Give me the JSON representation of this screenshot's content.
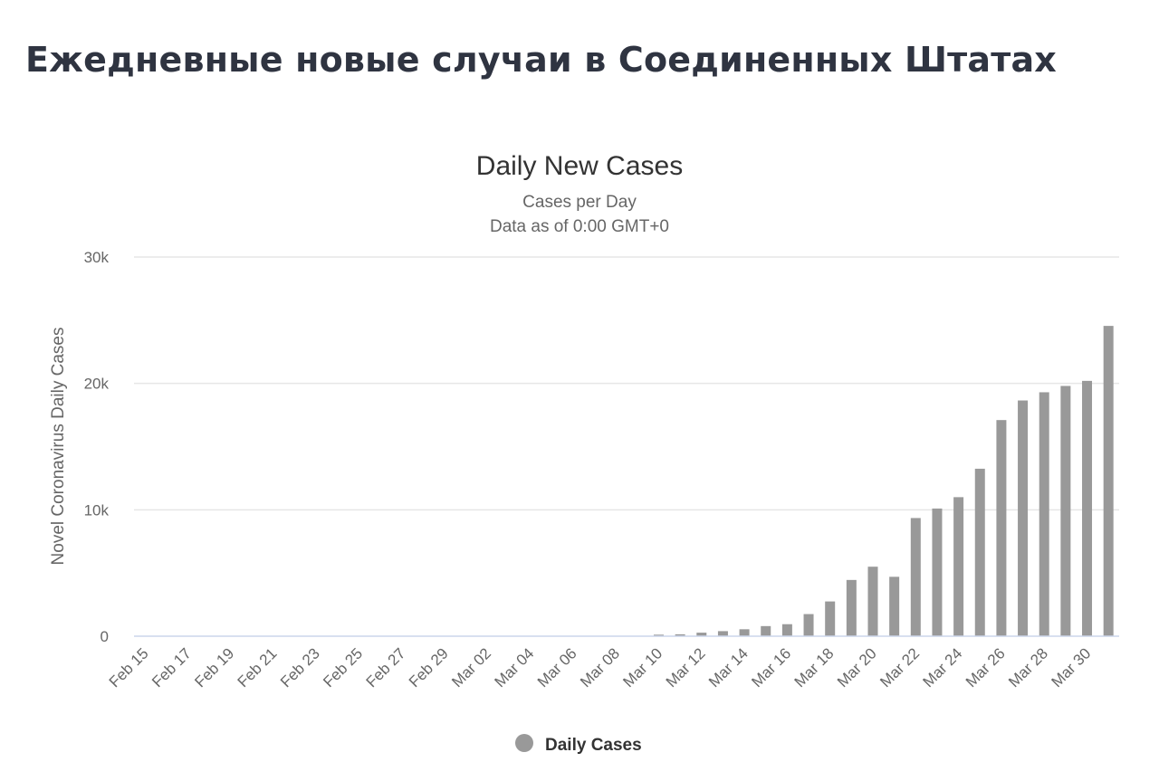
{
  "heading": "Ежедневные новые случаи в Соединенных Штатах",
  "chart_data": {
    "type": "bar",
    "title": "Daily New Cases",
    "subtitle": [
      "Cases per Day",
      "Data as of 0:00 GMT+0"
    ],
    "xlabel": "",
    "ylabel": "Novel Coronavirus Daily Cases",
    "ylim": [
      0,
      30000
    ],
    "yticks": [
      0,
      10000,
      20000,
      30000
    ],
    "ytick_labels": [
      "0",
      "10k",
      "20k",
      "30k"
    ],
    "grid": true,
    "legend": {
      "position": "bottom-center",
      "entries": [
        "Daily Cases"
      ]
    },
    "categories": [
      "Feb 15",
      "Feb 16",
      "Feb 17",
      "Feb 18",
      "Feb 19",
      "Feb 20",
      "Feb 21",
      "Feb 22",
      "Feb 23",
      "Feb 24",
      "Feb 25",
      "Feb 26",
      "Feb 27",
      "Feb 28",
      "Feb 29",
      "Mar 01",
      "Mar 02",
      "Mar 03",
      "Mar 04",
      "Mar 05",
      "Mar 06",
      "Mar 07",
      "Mar 08",
      "Mar 09",
      "Mar 10",
      "Mar 11",
      "Mar 12",
      "Mar 13",
      "Mar 14",
      "Mar 15",
      "Mar 16",
      "Mar 17",
      "Mar 18",
      "Mar 19",
      "Mar 20",
      "Mar 21",
      "Mar 22",
      "Mar 23",
      "Mar 24",
      "Mar 25",
      "Mar 26",
      "Mar 27",
      "Mar 28",
      "Mar 29",
      "Mar 30",
      "Mar 31"
    ],
    "tick_labels_shown": [
      "Feb 15",
      "Feb 17",
      "Feb 19",
      "Feb 21",
      "Feb 23",
      "Feb 25",
      "Feb 27",
      "Feb 29",
      "Mar 02",
      "Mar 04",
      "Mar 06",
      "Mar 08",
      "Mar 10",
      "Mar 12",
      "Mar 14",
      "Mar 16",
      "Mar 18",
      "Mar 20",
      "Mar 22",
      "Mar 24",
      "Mar 26",
      "Mar 28",
      "Mar 30"
    ],
    "series": [
      {
        "name": "Daily Cases",
        "color": "#999999",
        "values": [
          0,
          0,
          0,
          0,
          0,
          0,
          0,
          0,
          0,
          0,
          0,
          0,
          0,
          0,
          0,
          0,
          0,
          0,
          0,
          0,
          0,
          0,
          0,
          0,
          120,
          150,
          280,
          400,
          550,
          800,
          950,
          1750,
          2750,
          4450,
          5500,
          4700,
          9350,
          10100,
          11000,
          13250,
          17100,
          18650,
          19300,
          19800,
          20200,
          24550
        ]
      }
    ],
    "colors": {
      "bar": "#999999",
      "grid": "#e6e6e6",
      "axis": "#ccd6eb"
    }
  }
}
